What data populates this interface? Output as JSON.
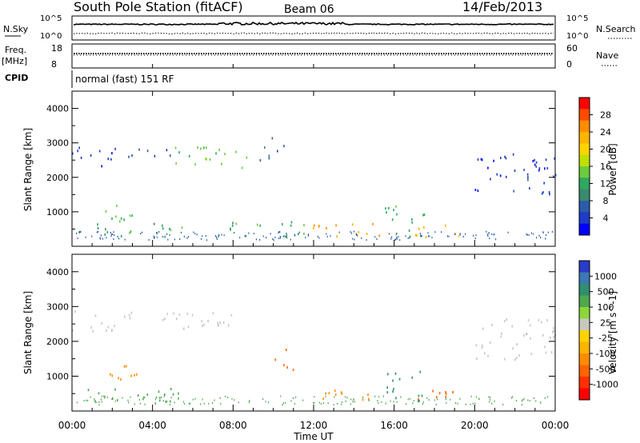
{
  "header": {
    "title": "South Pole Station (fitACF)",
    "beam": "Beam 06",
    "date": "14/Feb/2013"
  },
  "strips": {
    "nsky_label": "N.Sky",
    "nsearch_label": "N.Search",
    "nsky_ticks": [
      "10^5",
      "10^0"
    ],
    "nsearch_ticks": [
      "10^5",
      "10^0"
    ],
    "freq_label": "Freq.",
    "freq_unit": "[MHz]",
    "freq_ticks": [
      "18",
      "8"
    ],
    "nave_label": "Nave",
    "nave_ticks": [
      "60",
      "0"
    ],
    "cpid_label": "CPID",
    "cpid_text": "normal (fast) 151 RF"
  },
  "chart_data": [
    {
      "type": "heatmap",
      "ylabel": "Slant Range [km]",
      "xlabel": "",
      "y_ticks": [
        1000,
        2000,
        3000,
        4000
      ],
      "x_ticks": [
        "00:00",
        "04:00",
        "08:00",
        "12:00",
        "16:00",
        "20:00",
        "00:00"
      ],
      "colorbar": {
        "label": "Power [dB]",
        "ticks": [
          "28",
          "24",
          "20",
          "16",
          "12",
          "8",
          "4"
        ],
        "colors": [
          "#ff0000",
          "#ff4a00",
          "#ff8c00",
          "#ffb400",
          "#ffd400",
          "#bfe000",
          "#6ccc3c",
          "#2fa860",
          "#3a8a70",
          "#2a5ca8",
          "#1e3cc8",
          "#0000ff"
        ]
      },
      "echo_regions": [
        {
          "t0": 0.0,
          "t1": 2.2,
          "r0": 2300,
          "r1": 2900,
          "level": 4
        },
        {
          "t0": 2.2,
          "t1": 5.0,
          "r0": 2600,
          "r1": 2900,
          "level": 8
        },
        {
          "t0": 5.0,
          "t1": 8.8,
          "r0": 2300,
          "r1": 2900,
          "level": 16
        },
        {
          "t0": 9.3,
          "t1": 10.6,
          "r0": 2500,
          "r1": 3200,
          "level": 8
        },
        {
          "t0": 1.6,
          "t1": 3.2,
          "r0": 700,
          "r1": 1400,
          "level": 16
        },
        {
          "t0": 0.3,
          "t1": 5.5,
          "r0": 300,
          "r1": 700,
          "level": 12
        },
        {
          "t0": 7.2,
          "t1": 11.5,
          "r0": 300,
          "r1": 800,
          "level": 12
        },
        {
          "t0": 11.8,
          "t1": 15.8,
          "r0": 300,
          "r1": 700,
          "level": 24
        },
        {
          "t0": 15.5,
          "t1": 17.5,
          "r0": 300,
          "r1": 1200,
          "level": 12
        },
        {
          "t0": 17.0,
          "t1": 19.5,
          "r0": 300,
          "r1": 700,
          "level": 24
        },
        {
          "t0": 20.0,
          "t1": 24.0,
          "r0": 1500,
          "r1": 2700,
          "level": 4
        }
      ]
    },
    {
      "type": "heatmap",
      "ylabel": "Slant Range [km]",
      "xlabel": "Time UT",
      "y_ticks": [
        1000,
        2000,
        3000,
        4000
      ],
      "x_ticks": [
        "00:00",
        "04:00",
        "08:00",
        "12:00",
        "16:00",
        "20:00",
        "00:00"
      ],
      "colorbar": {
        "label": "Velocity [m s^-1]",
        "ticks": [
          "1000",
          "500",
          "100",
          "25",
          "-25",
          "-100",
          "-500",
          "-1000"
        ],
        "colors": [
          "#2a3cc8",
          "#3c78b4",
          "#2f8f6e",
          "#4ea84e",
          "#8cd63c",
          "#c8c8c0",
          "#ffd400",
          "#ffb400",
          "#ff8c00",
          "#ff6400",
          "#ff3000",
          "#ff0000"
        ]
      },
      "echo_regions": [
        {
          "t0": 0.0,
          "t1": 2.2,
          "r0": 2300,
          "r1": 2900,
          "level": 25
        },
        {
          "t0": 2.2,
          "t1": 5.0,
          "r0": 2600,
          "r1": 2900,
          "level": 25
        },
        {
          "t0": 5.0,
          "t1": 8.8,
          "r0": 2300,
          "r1": 2900,
          "level": 25
        },
        {
          "t0": 1.6,
          "t1": 3.2,
          "r0": 700,
          "r1": 1400,
          "level": -100
        },
        {
          "t0": 0.3,
          "t1": 5.5,
          "r0": 300,
          "r1": 700,
          "level": 100
        },
        {
          "t0": 10.0,
          "t1": 11.0,
          "r0": 1200,
          "r1": 1900,
          "level": -500
        },
        {
          "t0": 11.8,
          "t1": 15.0,
          "r0": 300,
          "r1": 700,
          "level": -100
        },
        {
          "t0": 15.5,
          "t1": 17.5,
          "r0": 300,
          "r1": 1200,
          "level": 500
        },
        {
          "t0": 17.0,
          "t1": 19.5,
          "r0": 300,
          "r1": 700,
          "level": -500
        },
        {
          "t0": 20.0,
          "t1": 24.0,
          "r0": 1500,
          "r1": 2700,
          "level": 25
        }
      ]
    }
  ]
}
